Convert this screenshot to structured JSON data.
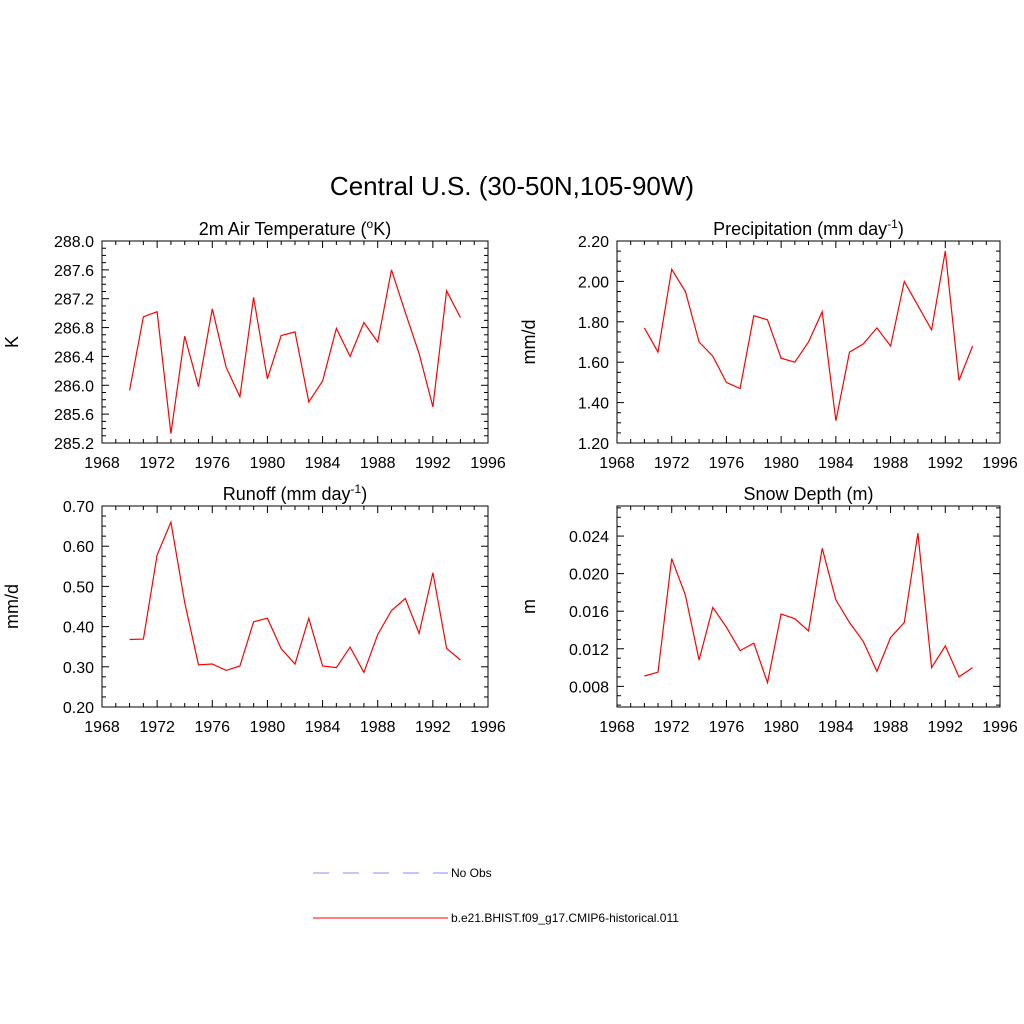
{
  "figure": {
    "title": "Central U.S. (30-50N,105-90W)"
  },
  "legend": [
    {
      "label": "No Obs",
      "color": "#8a8aff",
      "dash": "dashed"
    },
    {
      "label": "b.e21.BHIST.f09_g17.CMIP6-historical.011",
      "color": "#ff0000",
      "dash": "solid"
    }
  ],
  "chart_data": [
    {
      "type": "line",
      "title": "2m Air Temperature (",
      "title_sup": "o",
      "title_after": "K)",
      "ylabel": "K",
      "xlim": [
        1968,
        1996
      ],
      "x_ticks": [
        1968,
        1972,
        1976,
        1980,
        1984,
        1988,
        1992,
        1996
      ],
      "ylim": [
        285.2,
        288.0
      ],
      "y_ticks": [
        285.2,
        285.6,
        286.0,
        286.4,
        286.8,
        287.2,
        287.6,
        288.0
      ],
      "y_tick_labels": [
        "285.2",
        "285.6",
        "286.0",
        "286.4",
        "286.8",
        "287.2",
        "287.6",
        "288.0"
      ],
      "series": [
        {
          "color": "#ff0000",
          "x": [
            1970,
            1971,
            1972,
            1973,
            1974,
            1975,
            1976,
            1977,
            1978,
            1979,
            1980,
            1981,
            1982,
            1983,
            1984,
            1985,
            1986,
            1987,
            1988,
            1989,
            1990,
            1991,
            1992,
            1993,
            1994
          ],
          "values": [
            285.93,
            286.95,
            287.02,
            285.33,
            286.68,
            285.98,
            287.06,
            286.25,
            285.84,
            287.22,
            286.09,
            286.69,
            286.74,
            285.77,
            286.06,
            286.79,
            286.4,
            286.87,
            286.6,
            287.6,
            287.01,
            286.44,
            285.7,
            287.31,
            286.94
          ]
        }
      ]
    },
    {
      "type": "line",
      "title": "Precipitation (mm day",
      "title_sup": "-1",
      "title_after": ")",
      "ylabel": "mm/d",
      "xlim": [
        1968,
        1996
      ],
      "x_ticks": [
        1968,
        1972,
        1976,
        1980,
        1984,
        1988,
        1992,
        1996
      ],
      "ylim": [
        1.2,
        2.2
      ],
      "y_ticks": [
        1.2,
        1.4,
        1.6,
        1.8,
        2.0,
        2.2
      ],
      "y_tick_labels": [
        "1.20",
        "1.40",
        "1.60",
        "1.80",
        "2.00",
        "2.20"
      ],
      "series": [
        {
          "color": "#ff0000",
          "x": [
            1970,
            1971,
            1972,
            1973,
            1974,
            1975,
            1976,
            1977,
            1978,
            1979,
            1980,
            1981,
            1982,
            1983,
            1984,
            1985,
            1986,
            1987,
            1988,
            1989,
            1990,
            1991,
            1992,
            1993,
            1994
          ],
          "values": [
            1.77,
            1.65,
            2.06,
            1.95,
            1.7,
            1.63,
            1.5,
            1.47,
            1.83,
            1.81,
            1.62,
            1.6,
            1.7,
            1.85,
            1.31,
            1.65,
            1.69,
            1.77,
            1.68,
            2.0,
            1.88,
            1.76,
            2.15,
            1.51,
            1.68
          ]
        }
      ]
    },
    {
      "type": "line",
      "title": "Runoff (mm day",
      "title_sup": "-1",
      "title_after": ")",
      "ylabel": "mm/d",
      "xlim": [
        1968,
        1996
      ],
      "x_ticks": [
        1968,
        1972,
        1976,
        1980,
        1984,
        1988,
        1992,
        1996
      ],
      "ylim": [
        0.2,
        0.7
      ],
      "y_ticks": [
        0.2,
        0.3,
        0.4,
        0.5,
        0.6,
        0.7
      ],
      "y_tick_labels": [
        "0.20",
        "0.30",
        "0.40",
        "0.50",
        "0.60",
        "0.70"
      ],
      "series": [
        {
          "color": "#ff0000",
          "x": [
            1970,
            1971,
            1972,
            1973,
            1974,
            1975,
            1976,
            1977,
            1978,
            1979,
            1980,
            1981,
            1982,
            1983,
            1984,
            1985,
            1986,
            1987,
            1988,
            1989,
            1990,
            1991,
            1992,
            1993,
            1994
          ],
          "values": [
            0.368,
            0.369,
            0.578,
            0.66,
            0.46,
            0.305,
            0.307,
            0.291,
            0.302,
            0.412,
            0.421,
            0.345,
            0.307,
            0.421,
            0.302,
            0.298,
            0.349,
            0.286,
            0.38,
            0.44,
            0.47,
            0.383,
            0.534,
            0.346,
            0.317
          ]
        }
      ]
    },
    {
      "type": "line",
      "title": "Snow Depth (m)",
      "title_sup": "",
      "title_after": "",
      "ylabel": "m",
      "xlim": [
        1968,
        1996
      ],
      "x_ticks": [
        1968,
        1972,
        1976,
        1980,
        1984,
        1988,
        1992,
        1996
      ],
      "ylim": [
        0.0058,
        0.0272
      ],
      "y_ticks": [
        0.008,
        0.012,
        0.016,
        0.02,
        0.024
      ],
      "y_tick_labels": [
        "0.008",
        "0.012",
        "0.016",
        "0.020",
        "0.024"
      ],
      "series": [
        {
          "color": "#ff0000",
          "x": [
            1970,
            1971,
            1972,
            1973,
            1974,
            1975,
            1976,
            1977,
            1978,
            1979,
            1980,
            1981,
            1982,
            1983,
            1984,
            1985,
            1986,
            1987,
            1988,
            1989,
            1990,
            1991,
            1992,
            1993,
            1994
          ],
          "values": [
            0.0091,
            0.0095,
            0.0216,
            0.0177,
            0.0108,
            0.0164,
            0.0143,
            0.0118,
            0.0126,
            0.0084,
            0.0157,
            0.0152,
            0.0139,
            0.0227,
            0.0172,
            0.0148,
            0.0128,
            0.0096,
            0.0132,
            0.0148,
            0.0243,
            0.01,
            0.0123,
            0.009,
            0.01
          ]
        }
      ]
    }
  ]
}
